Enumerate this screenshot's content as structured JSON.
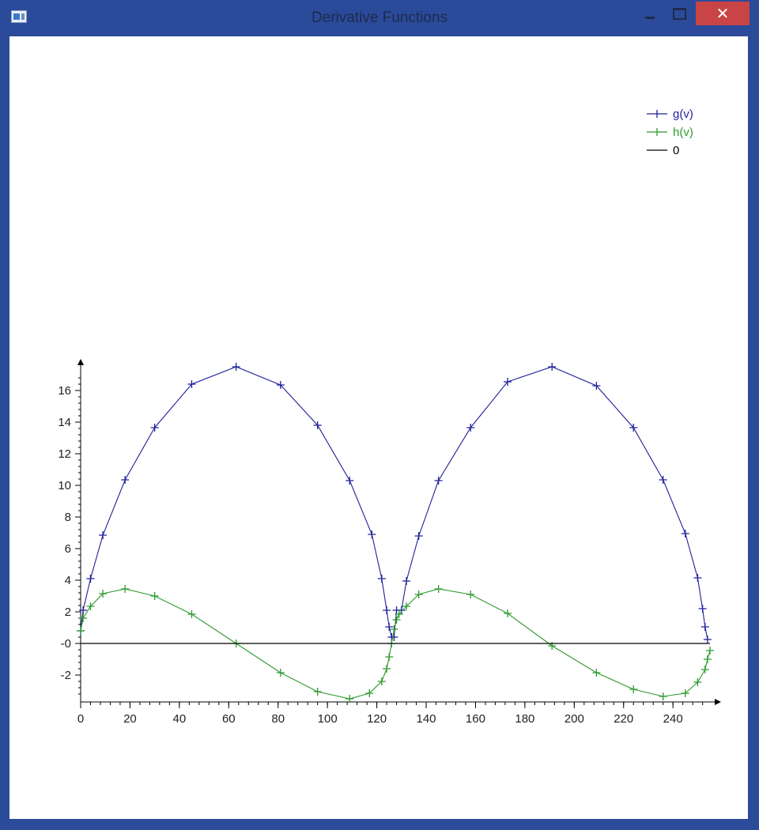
{
  "window": {
    "title": "Derivative Functions",
    "close_glyph": "✕"
  },
  "chart_data": {
    "type": "line",
    "title": "",
    "xlabel": "",
    "ylabel": "",
    "xlim": [
      0,
      255
    ],
    "ylim": [
      -3.5,
      17.5
    ],
    "x_ticks": [
      0,
      20,
      40,
      60,
      80,
      100,
      120,
      140,
      160,
      180,
      200,
      220,
      240
    ],
    "y_ticks": [
      -2,
      0,
      2,
      4,
      6,
      8,
      10,
      12,
      14,
      16
    ],
    "y_tick_labels": [
      "-2",
      "-0",
      "2",
      "4",
      "6",
      "8",
      "10",
      "12",
      "14",
      "16"
    ],
    "legend_position": "top-right",
    "series": [
      {
        "name": "g(v)",
        "color": "#1f1f9a",
        "marker": "+",
        "x": [
          0,
          1,
          4,
          9,
          18,
          30,
          45,
          63,
          81,
          96,
          109,
          118,
          122,
          124,
          125,
          126,
          127,
          128,
          130,
          132,
          137,
          145,
          158,
          173,
          191,
          209,
          224,
          236,
          245,
          250,
          252,
          253,
          254
        ],
        "y": [
          0.8,
          2.1,
          4.1,
          6.85,
          10.35,
          13.65,
          16.4,
          17.5,
          16.35,
          13.8,
          10.3,
          6.9,
          4.1,
          2.1,
          1.05,
          0.4,
          0.4,
          2.1,
          2.1,
          3.95,
          6.8,
          10.3,
          13.65,
          16.55,
          17.5,
          16.3,
          13.65,
          10.35,
          6.95,
          4.15,
          2.2,
          1.05,
          0.25
        ]
      },
      {
        "name": "h(v)",
        "color": "#2e9a2e",
        "marker": "+",
        "x": [
          0,
          1,
          4,
          9,
          18,
          30,
          45,
          63,
          81,
          96,
          109,
          117,
          122,
          124,
          125,
          126,
          127,
          128,
          129,
          132,
          137,
          145,
          158,
          173,
          191,
          209,
          224,
          236,
          245,
          250,
          253,
          254,
          255
        ],
        "y": [
          0.8,
          1.6,
          2.35,
          3.15,
          3.45,
          3.0,
          1.85,
          0.0,
          -1.85,
          -3.05,
          -3.5,
          -3.15,
          -2.4,
          -1.6,
          -0.85,
          0.0,
          0.9,
          1.5,
          1.85,
          2.35,
          3.1,
          3.45,
          3.1,
          1.9,
          -0.15,
          -1.85,
          -2.9,
          -3.35,
          -3.15,
          -2.45,
          -1.65,
          -1.0,
          -0.45
        ]
      },
      {
        "name": "0",
        "color": "#000000",
        "marker": "none",
        "x": [
          0,
          255
        ],
        "y": [
          0,
          0
        ]
      }
    ]
  }
}
